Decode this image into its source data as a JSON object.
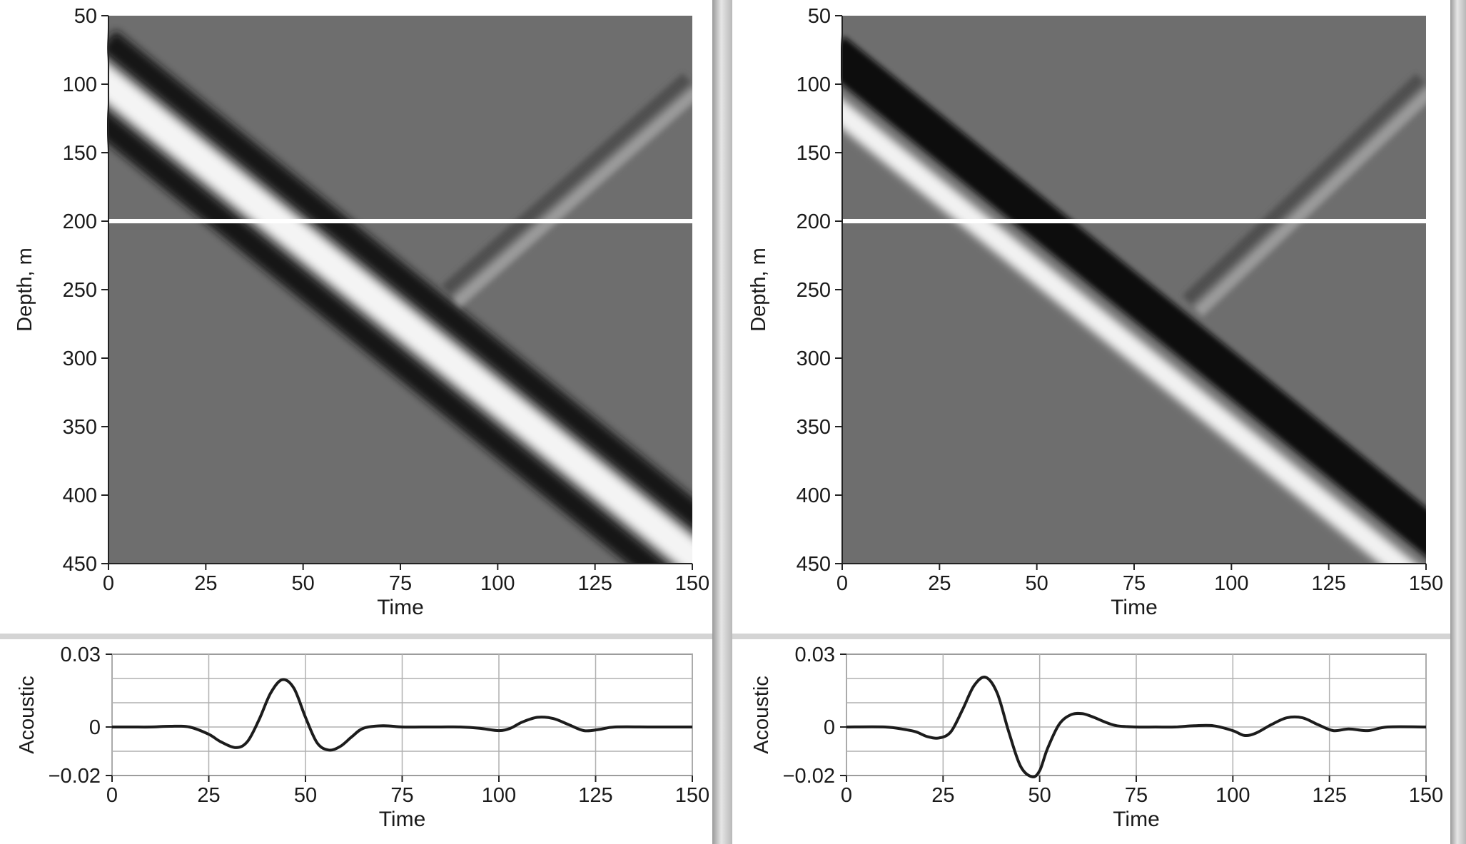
{
  "chart_data": [
    {
      "id": "left-image",
      "type": "heatmap",
      "title": "",
      "xlabel": "Time",
      "ylabel": "Depth, m",
      "xlim": [
        0,
        150
      ],
      "ylim": [
        50,
        450
      ],
      "y_reversed": true,
      "x_ticks": [
        "0",
        "25",
        "50",
        "75",
        "100",
        "125",
        "150"
      ],
      "y_ticks": [
        "50",
        "100",
        "150",
        "200",
        "250",
        "300",
        "350",
        "400",
        "450"
      ],
      "colormap": "gray",
      "boundary_depth": 200,
      "events": [
        {
          "name": "downgoing",
          "from": {
            "time": 0,
            "depth": 100
          },
          "to": {
            "time": 150,
            "depth": 445
          },
          "polarity": "bright",
          "width_depth": 40
        },
        {
          "name": "upgoing",
          "from": {
            "time": 88,
            "depth": 255
          },
          "to": {
            "time": 150,
            "depth": 100
          },
          "polarity": "faint",
          "width_depth": 25
        }
      ]
    },
    {
      "id": "right-image",
      "type": "heatmap",
      "title": "",
      "xlabel": "Time",
      "ylabel": "Depth, m",
      "xlim": [
        0,
        150
      ],
      "ylim": [
        50,
        450
      ],
      "y_reversed": true,
      "x_ticks": [
        "0",
        "25",
        "50",
        "75",
        "100",
        "125",
        "150"
      ],
      "y_ticks": [
        "50",
        "100",
        "150",
        "200",
        "250",
        "300",
        "350",
        "400",
        "450"
      ],
      "colormap": "gray",
      "boundary_depth": 200,
      "events": [
        {
          "name": "downgoing",
          "from": {
            "time": 0,
            "depth": 100
          },
          "to": {
            "time": 150,
            "depth": 445
          },
          "polarity": "dark-over-bright",
          "width_depth": 40
        },
        {
          "name": "upgoing",
          "from": {
            "time": 90,
            "depth": 262
          },
          "to": {
            "time": 150,
            "depth": 100
          },
          "polarity": "faint",
          "width_depth": 25
        }
      ]
    },
    {
      "id": "left-trace",
      "type": "line",
      "title": "",
      "xlabel": "Time",
      "ylabel": "Acoustic",
      "xlim": [
        0,
        150
      ],
      "ylim": [
        -0.02,
        0.03
      ],
      "x_ticks": [
        "0",
        "25",
        "50",
        "75",
        "100",
        "125",
        "150"
      ],
      "y_ticks": [
        "0.03",
        "0",
        "−0.02"
      ],
      "grid": true,
      "series": [
        {
          "x": [
            0,
            5,
            10,
            15,
            20,
            25,
            28,
            32,
            35,
            38,
            41,
            44,
            47,
            50,
            53,
            56,
            59,
            62,
            65,
            70,
            75,
            80,
            85,
            90,
            95,
            100,
            103,
            106,
            110,
            114,
            118,
            122,
            126,
            130,
            140,
            150
          ],
          "y": [
            0,
            0,
            0,
            0.0003,
            0,
            -0.003,
            -0.006,
            -0.0085,
            -0.006,
            0.003,
            0.014,
            0.0195,
            0.016,
            0.004,
            -0.0065,
            -0.0095,
            -0.008,
            -0.004,
            -0.0005,
            0.0005,
            0,
            0,
            0,
            0,
            -0.0005,
            -0.0015,
            -0.0005,
            0.002,
            0.004,
            0.0035,
            0.001,
            -0.0015,
            -0.001,
            0,
            0,
            0
          ]
        }
      ]
    },
    {
      "id": "right-trace",
      "type": "line",
      "title": "",
      "xlabel": "Time",
      "ylabel": "Acoustic",
      "xlim": [
        0,
        150
      ],
      "ylim": [
        -0.02,
        0.03
      ],
      "x_ticks": [
        "0",
        "25",
        "50",
        "75",
        "100",
        "125",
        "150"
      ],
      "y_ticks": [
        "0.03",
        "0",
        "−0.02"
      ],
      "grid": true,
      "series": [
        {
          "x": [
            0,
            10,
            15,
            18,
            21,
            24,
            27,
            30,
            33,
            36,
            39,
            42,
            45,
            48,
            50,
            52,
            55,
            58,
            61,
            64,
            67,
            70,
            75,
            80,
            85,
            90,
            95,
            100,
            103,
            106,
            110,
            114,
            118,
            122,
            126,
            130,
            135,
            140,
            150
          ],
          "y": [
            0,
            0,
            -0.001,
            -0.002,
            -0.004,
            -0.0045,
            -0.002,
            0.007,
            0.017,
            0.0205,
            0.014,
            -0.002,
            -0.016,
            -0.0205,
            -0.018,
            -0.009,
            0.001,
            0.005,
            0.0055,
            0.004,
            0.002,
            0.0005,
            0,
            0,
            0,
            0.0005,
            0.0005,
            -0.0015,
            -0.0035,
            -0.0025,
            0.001,
            0.0038,
            0.0038,
            0.001,
            -0.0015,
            -0.0008,
            -0.0015,
            0,
            0
          ]
        }
      ]
    }
  ]
}
